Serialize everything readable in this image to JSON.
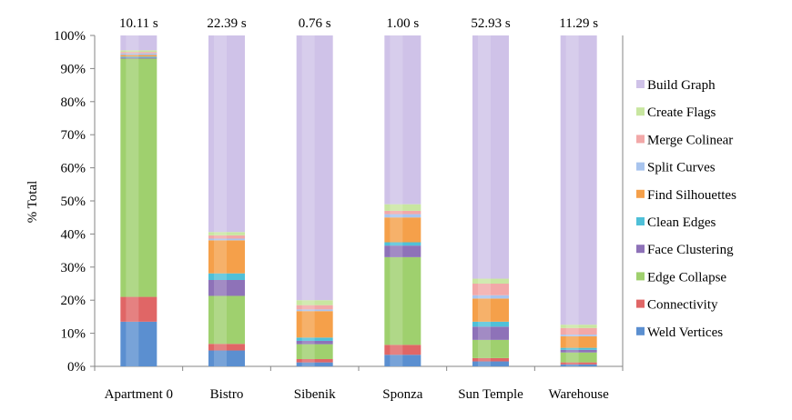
{
  "chart_data": {
    "type": "bar",
    "stacked": true,
    "percent": true,
    "ylabel": "% Total",
    "xlabel": "",
    "ylim": [
      0,
      100
    ],
    "yticks": [
      "0%",
      "10%",
      "20%",
      "30%",
      "40%",
      "50%",
      "60%",
      "70%",
      "80%",
      "90%",
      "100%"
    ],
    "categories": [
      "Apartment 0",
      "Bistro",
      "Sibenik",
      "Sponza",
      "Sun Temple",
      "Warehouse"
    ],
    "totals": [
      "10.11 s",
      "22.39 s",
      "0.76 s",
      "1.00 s",
      "52.93 s",
      "11.29 s"
    ],
    "legend_position": "right",
    "series": [
      {
        "name": "Weld Vertices",
        "color": "#5b8fd0",
        "values": [
          13.5,
          4.8,
          1.2,
          3.5,
          1.5,
          0.6
        ]
      },
      {
        "name": "Connectivity",
        "color": "#e06666",
        "values": [
          7.5,
          2.0,
          1.0,
          3.0,
          1.0,
          0.6
        ]
      },
      {
        "name": "Edge Collapse",
        "color": "#9fd06e",
        "values": [
          72.0,
          14.5,
          4.5,
          26.5,
          5.5,
          3.0
        ]
      },
      {
        "name": "Face Clustering",
        "color": "#8e72b8",
        "values": [
          0.3,
          4.8,
          1.0,
          3.5,
          4.0,
          0.8
        ]
      },
      {
        "name": "Clean Edges",
        "color": "#4fc0d8",
        "values": [
          0.3,
          2.0,
          1.0,
          1.0,
          1.5,
          0.6
        ]
      },
      {
        "name": "Find Silhouettes",
        "color": "#f5a04a",
        "values": [
          0.5,
          10.0,
          8.0,
          7.5,
          7.0,
          3.5
        ]
      },
      {
        "name": "Split Curves",
        "color": "#a8c4ee",
        "values": [
          0.5,
          0.5,
          0.5,
          1.0,
          1.0,
          0.5
        ]
      },
      {
        "name": "Merge Colinear",
        "color": "#f2a8a8",
        "values": [
          0.4,
          1.0,
          1.3,
          1.0,
          3.5,
          2.0
        ]
      },
      {
        "name": "Create Flags",
        "color": "#c8e6a0",
        "values": [
          0.5,
          1.0,
          1.5,
          2.0,
          1.5,
          1.0
        ]
      },
      {
        "name": "Build Graph",
        "color": "#cfc2e8",
        "values": [
          4.5,
          59.4,
          80.0,
          51.0,
          73.5,
          87.4
        ]
      }
    ]
  }
}
